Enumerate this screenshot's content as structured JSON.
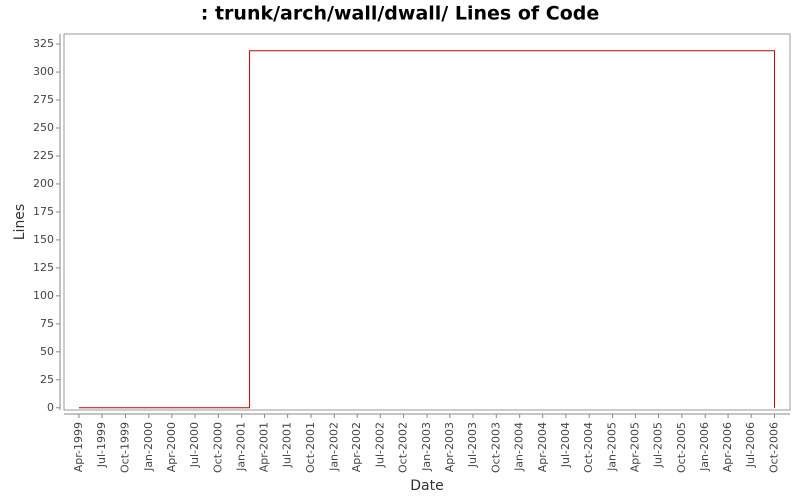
{
  "chart_data": {
    "type": "line",
    "title": ": trunk/arch/wall/dwall/ Lines of Code",
    "x_label": "Date",
    "y_label": "Lines",
    "step": "post",
    "x": [
      "Apr-1999",
      "Feb-2001",
      "Oct-2006"
    ],
    "series": [
      {
        "name": "Lines",
        "color": "#cc0000",
        "values": [
          0,
          319,
          0
        ]
      }
    ],
    "xlim": [
      "Feb-1999",
      "Dec-2006"
    ],
    "xticks": [
      "Apr-1999",
      "Jul-1999",
      "Oct-1999",
      "Jan-2000",
      "Apr-2000",
      "Jul-2000",
      "Oct-2000",
      "Jan-2001",
      "Apr-2001",
      "Jul-2001",
      "Oct-2001",
      "Jan-2002",
      "Apr-2002",
      "Jul-2002",
      "Oct-2002",
      "Jan-2003",
      "Apr-2003",
      "Jul-2003",
      "Oct-2003",
      "Jan-2004",
      "Apr-2004",
      "Jul-2004",
      "Oct-2004",
      "Jan-2005",
      "Apr-2005",
      "Jul-2005",
      "Oct-2005",
      "Jan-2006",
      "Apr-2006",
      "Jul-2006",
      "Oct-2006"
    ],
    "ylim": [
      -2,
      334
    ],
    "yticks": [
      0,
      25,
      50,
      75,
      100,
      125,
      150,
      175,
      200,
      225,
      250,
      275,
      300,
      325
    ]
  }
}
